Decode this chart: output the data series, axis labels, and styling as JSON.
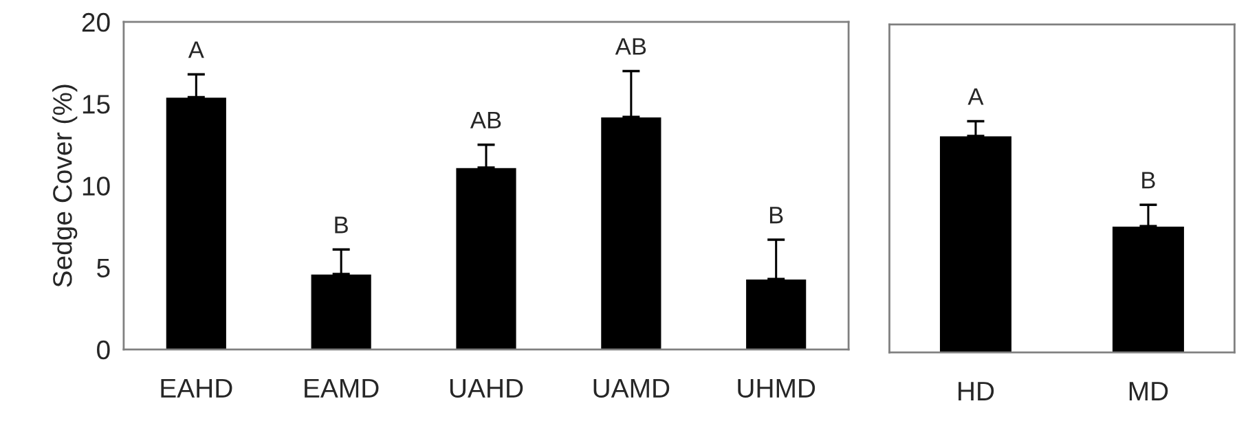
{
  "chart_data": [
    {
      "type": "bar",
      "ylabel": "Sedge Cover (%)",
      "categories": [
        "EAHD",
        "EAMD",
        "UAHD",
        "UAMD",
        "UHMD"
      ],
      "values": [
        15.4,
        4.6,
        11.1,
        14.2,
        4.3
      ],
      "color": "#000000",
      "errors": [
        [
          15.4,
          16.8
        ],
        [
          4.6,
          6.1
        ],
        [
          11.1,
          12.5
        ],
        [
          14.2,
          17.0
        ],
        [
          4.3,
          6.7
        ]
      ],
      "ylim": [
        0,
        20
      ],
      "yticks": [
        0,
        5,
        10,
        15,
        20
      ],
      "grid": false,
      "legend": false,
      "annotations": [
        {
          "text": "A",
          "x": "EAHD",
          "y": 16.8
        },
        {
          "text": "B",
          "x": "EAMD",
          "y": 6.1
        },
        {
          "text": "AB",
          "x": "UAHD",
          "y": 12.5
        },
        {
          "text": "AB",
          "x": "UAMD",
          "y": 17.0
        },
        {
          "text": "B",
          "x": "UHMD",
          "y": 6.7
        }
      ]
    },
    {
      "type": "bar",
      "categories": [
        "HD",
        "MD"
      ],
      "values": [
        13.2,
        7.7
      ],
      "color": "#000000",
      "errors": [
        [
          13.2,
          14.1
        ],
        [
          7.7,
          9.0
        ]
      ],
      "ylim": [
        0,
        20
      ],
      "yticks": [
        0,
        5,
        10,
        15,
        20
      ],
      "tick_labels": "x",
      "grid": false,
      "legend": false,
      "annotations": [
        {
          "text": "A",
          "x": "HD",
          "y": 14.1
        },
        {
          "text": "B",
          "x": "MD",
          "y": 9.0
        }
      ]
    }
  ]
}
